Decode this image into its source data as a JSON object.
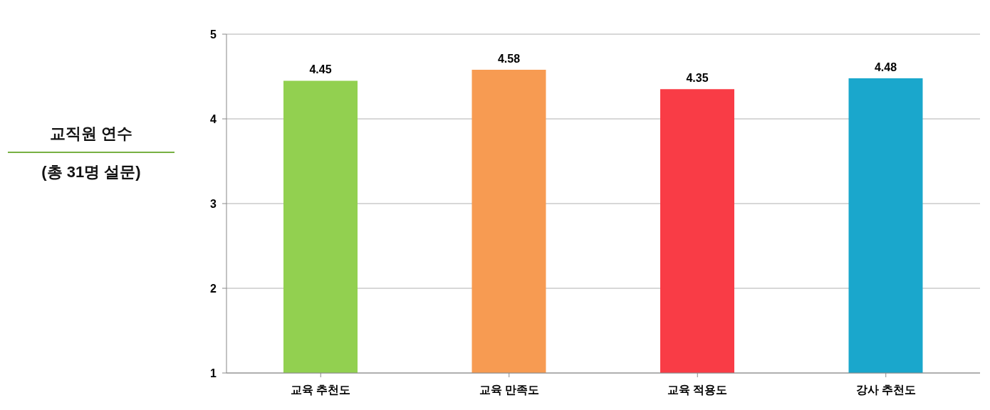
{
  "chart_data": {
    "type": "bar",
    "title": "교직원 연수",
    "subtitle": "(총 31명 설문)",
    "categories": [
      "교육 추천도",
      "교육 만족도",
      "교육 적용도",
      "강사 추천도"
    ],
    "values": [
      4.45,
      4.58,
      4.35,
      4.48
    ],
    "colors": [
      "#92d050",
      "#f79b52",
      "#f93c46",
      "#1aa7cc"
    ],
    "ylim": [
      1,
      5
    ],
    "yticks": [
      1,
      2,
      3,
      4,
      5
    ],
    "grid": "y",
    "data_labels": true
  }
}
